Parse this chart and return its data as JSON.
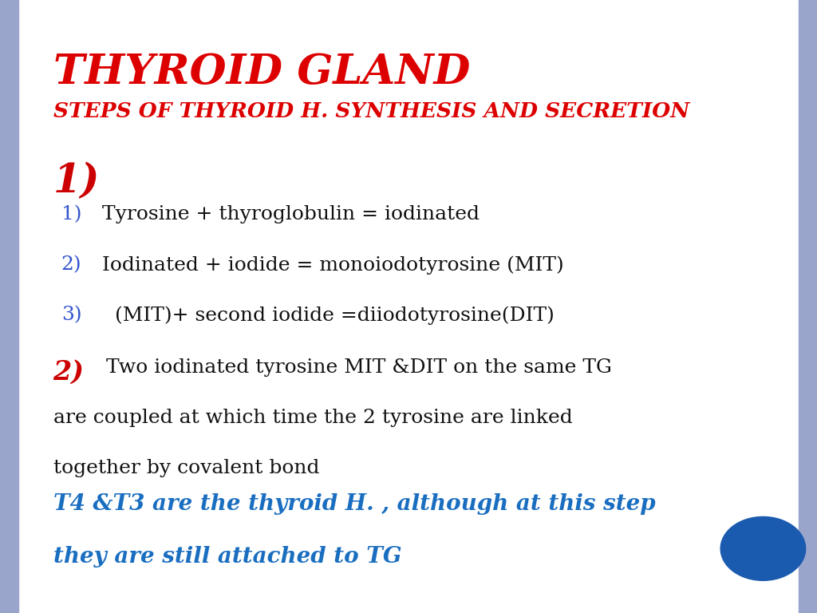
{
  "bg_color": "#ffffff",
  "border_color": "#9aa5cc",
  "title_line1": "Thyroid gland",
  "title_line1_upper": "THYROID GLAND",
  "title_line2_upper": "STEPS OF THYROID H. SYNTHESIS AND SECRETION",
  "title_color": "#dd0000",
  "step1_label": "1)",
  "step1_color": "#cc0000",
  "sub_items": [
    {
      "num": "1)",
      "text": "Tyrosine + thyroglobulin = iodinated"
    },
    {
      "num": "2)",
      "text": "Iodinated + iodide = monoiodotyrosine (MIT)"
    },
    {
      "num": "3)",
      "text": "  (MIT)+ second iodide =diiodotyrosine(DIT)"
    }
  ],
  "sub_num_color": "#3355cc",
  "sub_text_color": "#111111",
  "step2_label": "2)",
  "step2_color": "#cc0000",
  "step2_line1": "Two iodinated tyrosine MIT &DIT on the same TG",
  "step2_line2": "are coupled at which time the 2 tyrosine are linked",
  "step2_line3": "together by covalent bond",
  "step2_text_color": "#111111",
  "footer_line1": "T4 &T3 are the thyroid H. , although at this step",
  "footer_line2": "they are still attached to TG",
  "footer_color": "#1a6ec0",
  "circle_color": "#1a5aaf",
  "figwidth": 10.24,
  "figheight": 7.68
}
